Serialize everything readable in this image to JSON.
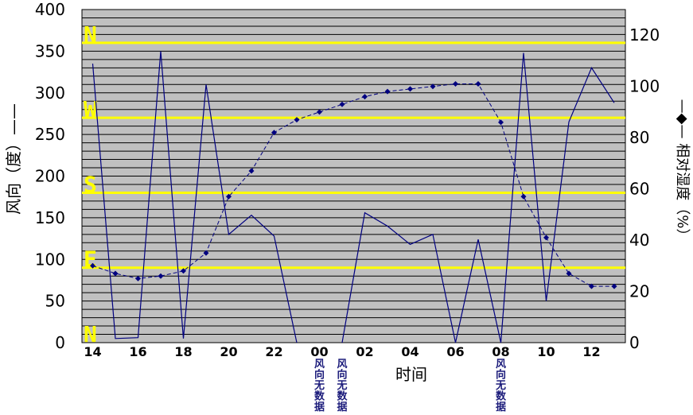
{
  "chart_data": {
    "type": "line",
    "xlabel": "时间",
    "ylabel_left": "风向（度）——",
    "ylabel_right": "—◆— 相对湿度（%）",
    "x_ticks": [
      "14",
      "16",
      "18",
      "20",
      "22",
      "00",
      "02",
      "04",
      "06",
      "08",
      "10",
      "12"
    ],
    "hours": [
      "14",
      "15",
      "16",
      "17",
      "18",
      "19",
      "20",
      "21",
      "22",
      "23",
      "00",
      "01",
      "02",
      "03",
      "04",
      "05",
      "06",
      "07",
      "08",
      "09",
      "10",
      "11",
      "12",
      "13"
    ],
    "left_axis": {
      "min": 0,
      "max": 400,
      "step": 50,
      "ticks": [
        "0",
        "50",
        "100",
        "150",
        "200",
        "250",
        "300",
        "350",
        "400"
      ]
    },
    "right_axis": {
      "min": 0,
      "max": 130,
      "ticks": [
        "0",
        "20",
        "40",
        "60",
        "80",
        "100",
        "120"
      ]
    },
    "direction_lines": [
      {
        "label": "N",
        "value": 360
      },
      {
        "label": "W",
        "value": 270
      },
      {
        "label": "S",
        "value": 180
      },
      {
        "label": "E",
        "value": 90
      },
      {
        "label": "N",
        "value": 0
      }
    ],
    "direction_line_color": "#ffff00",
    "series": [
      {
        "label": "风向（度）",
        "axis": "left",
        "style": "solid",
        "color": "#000080",
        "values": [
          335,
          5,
          6,
          350,
          5,
          310,
          130,
          153,
          128,
          0,
          null,
          0,
          156,
          140,
          118,
          130,
          0,
          124,
          0,
          348,
          50,
          265,
          330,
          288
        ]
      },
      {
        "label": "相对湿度（%）",
        "axis": "right",
        "style": "dashed",
        "marker": "diamond",
        "color": "#000080",
        "values": [
          30,
          27,
          25,
          26,
          28,
          35,
          57,
          67,
          82,
          87,
          90,
          93,
          96,
          98,
          99,
          100,
          101,
          101,
          86,
          57,
          41,
          27,
          22,
          22
        ]
      }
    ],
    "annotations": [
      {
        "hour": "00",
        "text": "风向无数据"
      },
      {
        "hour": "01",
        "text": "风向无数据"
      },
      {
        "hour": "08",
        "text": "风向无数据"
      }
    ]
  }
}
